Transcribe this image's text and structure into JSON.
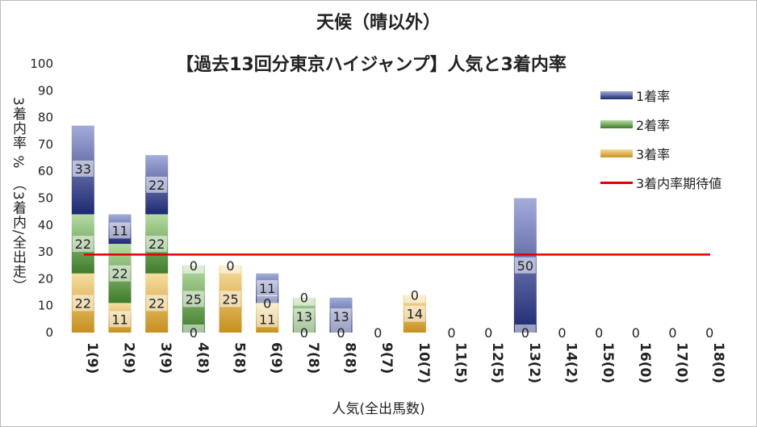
{
  "chart_data": {
    "type": "bar",
    "stacked": true,
    "title": "天候（晴以外）",
    "subtitle": "【過去13回分東京ハイジャンプ】人気と3着内率",
    "xlabel": "人気(全出馬数)",
    "ylabel": "3着内率 %　（3着内/全出走）",
    "ylim": [
      0,
      100
    ],
    "yticks": [
      0,
      10,
      20,
      30,
      40,
      50,
      60,
      70,
      80,
      90,
      100
    ],
    "categories": [
      "1(9)",
      "2(9)",
      "3(9)",
      "4(8)",
      "5(8)",
      "6(9)",
      "7(8)",
      "8(8)",
      "9(7)",
      "10(7)",
      "11(5)",
      "12(5)",
      "13(2)",
      "14(2)",
      "15(0)",
      "16(0)",
      "17(0)",
      "18(0)"
    ],
    "series": [
      {
        "name": "3着率",
        "values": [
          22,
          11,
          22,
          0,
          25,
          11,
          0,
          0,
          0,
          14,
          0,
          0,
          0,
          0,
          0,
          0,
          0,
          0
        ],
        "colors": [
          "#c8901e",
          "#f6dea0"
        ]
      },
      {
        "name": "2着率",
        "values": [
          22,
          22,
          22,
          25,
          0,
          0,
          13,
          0,
          0,
          0,
          0,
          0,
          0,
          0,
          0,
          0,
          0,
          0
        ],
        "colors": [
          "#3e7c2a",
          "#b8dca4"
        ]
      },
      {
        "name": "1着率",
        "values": [
          33,
          11,
          22,
          0,
          0,
          11,
          0,
          13,
          0,
          0,
          0,
          0,
          50,
          0,
          0,
          0,
          0,
          0
        ],
        "colors": [
          "#1d2a72",
          "#a4acda"
        ]
      }
    ],
    "reference_line": {
      "name": "3着内率期待値",
      "value": 29,
      "color": "#e00000"
    },
    "legend": "top-right",
    "grid": false,
    "labels": [
      {
        "cat": 0,
        "text": "22",
        "y": 11
      },
      {
        "cat": 0,
        "text": "22",
        "y": 33
      },
      {
        "cat": 0,
        "text": "33",
        "y": 61
      },
      {
        "cat": 1,
        "text": "11",
        "y": 5
      },
      {
        "cat": 1,
        "text": "22",
        "y": 22
      },
      {
        "cat": 1,
        "text": "11",
        "y": 38
      },
      {
        "cat": 2,
        "text": "22",
        "y": 11
      },
      {
        "cat": 2,
        "text": "22",
        "y": 33
      },
      {
        "cat": 2,
        "text": "22",
        "y": 55
      },
      {
        "cat": 3,
        "text": "0",
        "y": 0
      },
      {
        "cat": 3,
        "text": "25",
        "y": 12.5
      },
      {
        "cat": 3,
        "text": "0",
        "y": 25
      },
      {
        "cat": 4,
        "text": "25",
        "y": 12.5
      },
      {
        "cat": 4,
        "text": "0",
        "y": 25
      },
      {
        "cat": 5,
        "text": "11",
        "y": 5
      },
      {
        "cat": 5,
        "text": "0",
        "y": 11
      },
      {
        "cat": 5,
        "text": "11",
        "y": 16.5
      },
      {
        "cat": 6,
        "text": "0",
        "y": 0
      },
      {
        "cat": 6,
        "text": "13",
        "y": 6
      },
      {
        "cat": 6,
        "text": "0",
        "y": 13
      },
      {
        "cat": 7,
        "text": "0",
        "y": 0
      },
      {
        "cat": 7,
        "text": "13",
        "y": 6
      },
      {
        "cat": 8,
        "text": "0",
        "y": 0
      },
      {
        "cat": 9,
        "text": "14",
        "y": 7
      },
      {
        "cat": 9,
        "text": "0",
        "y": 14
      },
      {
        "cat": 10,
        "text": "0",
        "y": 0
      },
      {
        "cat": 11,
        "text": "0",
        "y": 0
      },
      {
        "cat": 12,
        "text": "0",
        "y": 0
      },
      {
        "cat": 12,
        "text": "50",
        "y": 25
      },
      {
        "cat": 13,
        "text": "0",
        "y": 0
      },
      {
        "cat": 14,
        "text": "0",
        "y": 0
      },
      {
        "cat": 15,
        "text": "0",
        "y": 0
      },
      {
        "cat": 16,
        "text": "0",
        "y": 0
      },
      {
        "cat": 17,
        "text": "0",
        "y": 0
      }
    ]
  }
}
